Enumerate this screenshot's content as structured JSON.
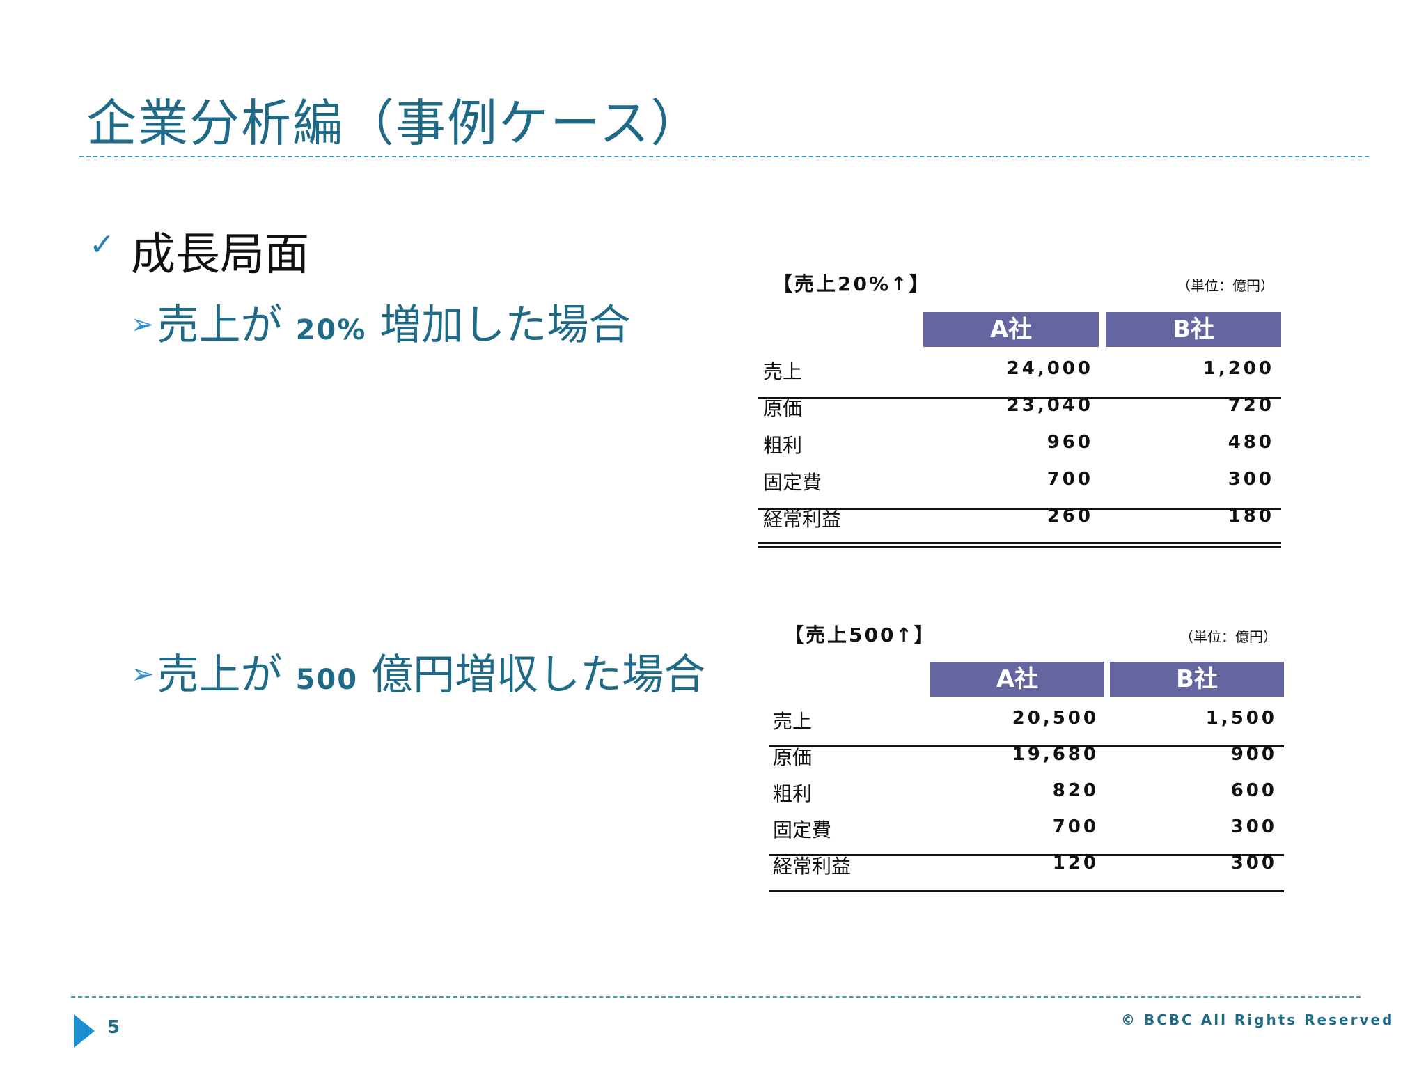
{
  "slide": {
    "title": "企業分析編（事例ケース）",
    "bullet_heading": "成長局面",
    "sub1": {
      "prefix": "売上が",
      "num": "20%",
      "suffix": "増加した場合"
    },
    "sub2": {
      "prefix": "売上が",
      "num": "500",
      "suffix": "億円増収した場合"
    }
  },
  "table1": {
    "title": "【売上20%↑】",
    "unit": "（単位：億円）",
    "headers": [
      "A社",
      "B社"
    ],
    "rows": [
      {
        "label": "売上",
        "a": "24,000",
        "b": "1,200"
      },
      {
        "label": "原価",
        "a": "23,040",
        "b": "720"
      },
      {
        "label": "粗利",
        "a": "960",
        "b": "480"
      },
      {
        "label": "固定費",
        "a": "700",
        "b": "300"
      },
      {
        "label": "経常利益",
        "a": "260",
        "b": "180"
      }
    ]
  },
  "table2": {
    "title": "【売上500↑】",
    "unit": "（単位：億円）",
    "headers": [
      "A社",
      "B社"
    ],
    "rows": [
      {
        "label": "売上",
        "a": "20,500",
        "b": "1,500"
      },
      {
        "label": "原価",
        "a": "19,680",
        "b": "900"
      },
      {
        "label": "粗利",
        "a": "820",
        "b": "600"
      },
      {
        "label": "固定費",
        "a": "700",
        "b": "300"
      },
      {
        "label": "経常利益",
        "a": "120",
        "b": "300"
      }
    ]
  },
  "footer": {
    "page_number": "5",
    "copyright": "© BCBC All Rights Reserved"
  },
  "icons": {
    "check": "checkmark-icon",
    "arrow": "arrowhead-icon",
    "footer": "play-triangle-icon"
  },
  "colors": {
    "title": "#1f6a86",
    "header_bg": "#6566a0",
    "dash": "#3c97c6",
    "accent": "#1c8fd0"
  }
}
